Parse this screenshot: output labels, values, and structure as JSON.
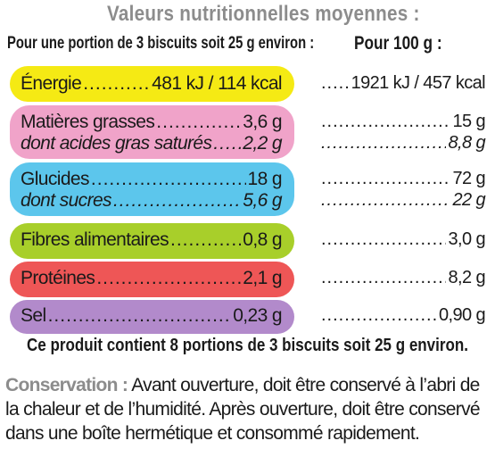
{
  "title": "Valeurs nutritionnelles moyennes :",
  "portion_header": "Pour une portion de 3 biscuits soit 25 g environ :",
  "per100_header": "Pour 100 g :",
  "dots": "....................................................................................",
  "colors": {
    "energie": "#f5ea14",
    "matieres_grasses": "#f0a3c9",
    "glucides": "#5cc6ec",
    "fibres": "#a8cf2a",
    "proteines": "#ee5656",
    "sel": "#b28acb",
    "label_gray": "#8c8c8c"
  },
  "rows": {
    "energie": {
      "label": "Énergie",
      "portion": "481 kJ / 114 kcal",
      "per100": "1921 kJ / 457 kcal"
    },
    "matieres_grasses": {
      "label": "Matières grasses",
      "portion": "3,6 g",
      "per100": "15 g"
    },
    "acides_gras_satures": {
      "label": "dont acides gras saturés",
      "portion": "2,2 g",
      "per100": "8,8 g"
    },
    "glucides": {
      "label": "Glucides",
      "portion": "18 g",
      "per100": "72 g"
    },
    "sucres": {
      "label": "dont sucres",
      "portion": "5,6 g",
      "per100": "22 g"
    },
    "fibres": {
      "label": "Fibres alimentaires",
      "portion": "0,8 g",
      "per100": "3,0 g"
    },
    "proteines": {
      "label": "Protéines",
      "portion": "2,1 g",
      "per100": "8,2 g"
    },
    "sel": {
      "label": "Sel",
      "portion": "0,23 g",
      "per100": "0,90 g"
    }
  },
  "portions_note": "Ce produit contient 8 portions de 3 biscuits soit 25 g environ.",
  "conservation": {
    "label": "Conservation :",
    "text": " Avant ouverture, doit être conservé à l’abri de la chaleur et de l’humidité. Après ouverture, doit être conservé dans une boîte hermétique et consommé rapidement."
  }
}
